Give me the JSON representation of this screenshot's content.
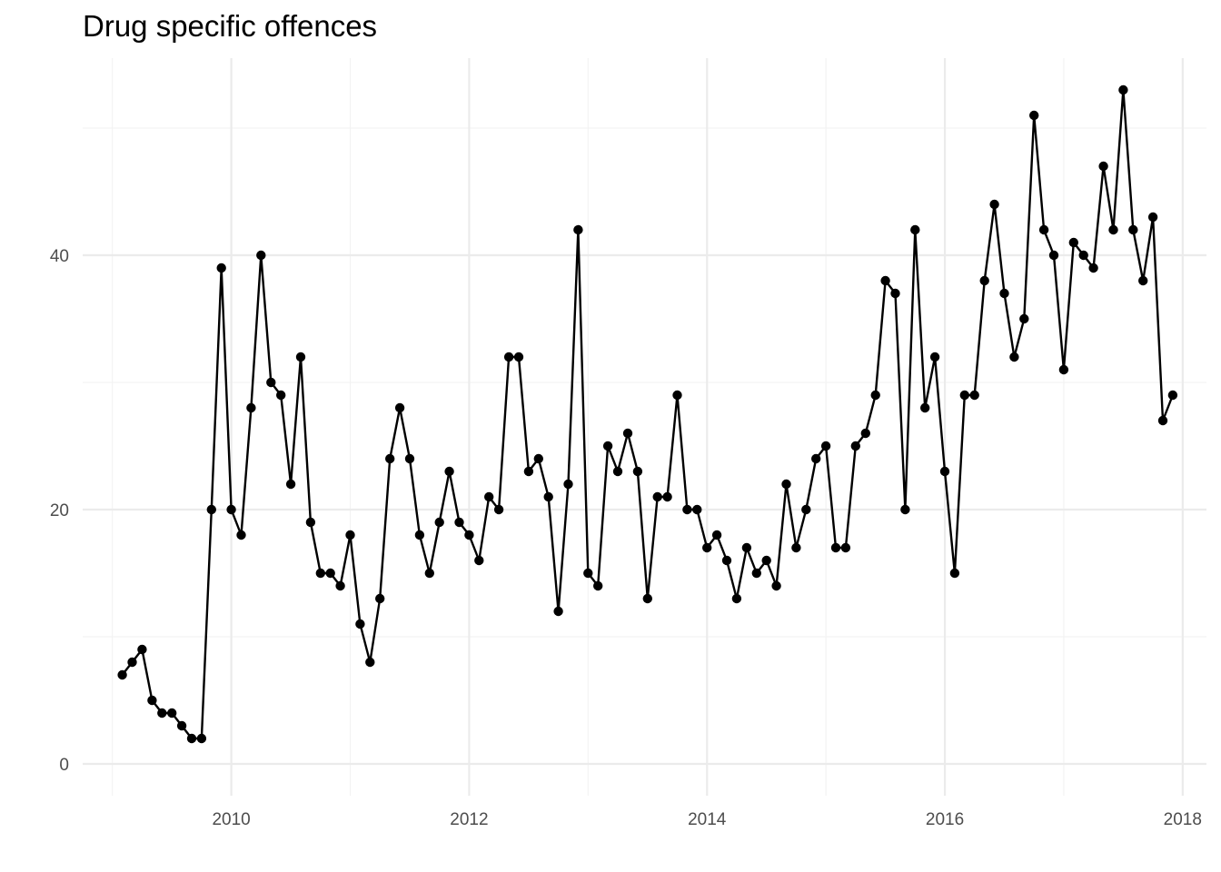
{
  "chart_data": {
    "type": "line",
    "title": "Drug specific offences",
    "xlabel": "",
    "ylabel": "",
    "x_axis": {
      "range": [
        2008.75,
        2018.2
      ],
      "major_ticks": [
        2010,
        2012,
        2014,
        2016,
        2018
      ],
      "minor_ticks": [
        2009,
        2011,
        2013,
        2015,
        2017
      ],
      "tick_labels": [
        "2010",
        "2012",
        "2014",
        "2016",
        "2018"
      ]
    },
    "y_axis": {
      "range": [
        -2.5,
        55.5
      ],
      "major_ticks": [
        0,
        20,
        40
      ],
      "minor_ticks": [
        10,
        30,
        50
      ],
      "tick_labels": [
        "0",
        "20",
        "40"
      ]
    },
    "grid": true,
    "start_year": 2009,
    "start_month": 2,
    "values": [
      7,
      8,
      9,
      5,
      4,
      4,
      3,
      2,
      2,
      20,
      39,
      20,
      18,
      28,
      40,
      30,
      29,
      22,
      32,
      19,
      15,
      15,
      14,
      18,
      11,
      8,
      13,
      24,
      28,
      24,
      18,
      15,
      19,
      23,
      19,
      18,
      16,
      21,
      20,
      32,
      32,
      23,
      24,
      21,
      12,
      22,
      42,
      15,
      14,
      25,
      23,
      26,
      23,
      13,
      21,
      21,
      29,
      20,
      20,
      17,
      18,
      16,
      13,
      17,
      15,
      16,
      14,
      22,
      17,
      20,
      24,
      25,
      17,
      17,
      25,
      26,
      29,
      38,
      37,
      20,
      42,
      28,
      32,
      23,
      15,
      29,
      29,
      38,
      44,
      37,
      32,
      35,
      51,
      42,
      40,
      31,
      41,
      40,
      39,
      47,
      42,
      53,
      42,
      38,
      43,
      27,
      29
    ],
    "colors": {
      "line": "#000000",
      "point": "#000000",
      "grid_major": "#ebebeb",
      "grid_minor": "#f2f2f2",
      "tick_text": "#4d4d4d"
    }
  }
}
